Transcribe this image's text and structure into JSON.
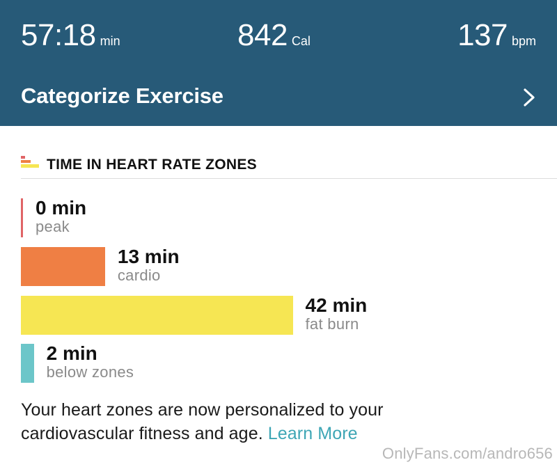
{
  "header": {
    "duration": {
      "value": "57:18",
      "unit": "min"
    },
    "calories": {
      "value": "842",
      "unit": "Cal"
    },
    "heart_rate": {
      "value": "137",
      "unit": "bpm"
    },
    "categorize_label": "Categorize Exercise",
    "chevron_icon": "chevron-right-icon"
  },
  "zones_section": {
    "title": "TIME IN HEART RATE ZONES",
    "icon": "zones-icon",
    "total_minutes": 57
  },
  "chart_data": {
    "type": "bar",
    "orientation": "horizontal",
    "title": "TIME IN HEART RATE ZONES",
    "categories": [
      "peak",
      "cardio",
      "fat burn",
      "below zones"
    ],
    "values": [
      0,
      13,
      42,
      2
    ],
    "labels": [
      "0 min",
      "13 min",
      "42 min",
      "2 min"
    ],
    "colors": [
      "#e06466",
      "#ef7f44",
      "#f6e653",
      "#6cc6c9"
    ],
    "xlabel": "",
    "ylabel": ""
  },
  "note": {
    "text": "Your heart zones are now personalized to your cardiovascular fitness and age.",
    "link_label": "Learn More"
  },
  "watermark": "OnlyFans.com/andro656",
  "colors": {
    "header_bg": "#275a78",
    "link": "#3ea6b5"
  }
}
